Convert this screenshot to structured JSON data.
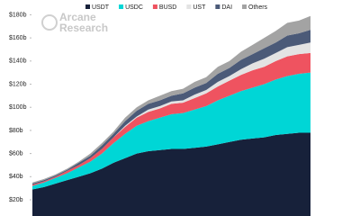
{
  "chart_data": {
    "type": "stacked-area",
    "logo": [
      "Arcane",
      "Research"
    ],
    "categories": [
      null,
      null,
      null,
      null,
      null,
      null,
      null,
      null,
      null,
      null,
      null,
      null,
      null,
      null,
      null,
      null,
      null,
      null,
      null,
      null,
      null,
      null,
      null,
      null,
      null
    ],
    "series": [
      {
        "name": "USDT",
        "color": "#17213a",
        "values": [
          29,
          31,
          34,
          37,
          40,
          43,
          47,
          52,
          56,
          60,
          62,
          63,
          64,
          64,
          65,
          66,
          68,
          70,
          72,
          73,
          74,
          76,
          77,
          78,
          78
        ]
      },
      {
        "name": "USDC",
        "color": "#00d6d6",
        "values": [
          3,
          4,
          5,
          6,
          8,
          10,
          13,
          17,
          21,
          24,
          26,
          28,
          30,
          31,
          33,
          35,
          38,
          40,
          42,
          44,
          46,
          48,
          50,
          51,
          52
        ]
      },
      {
        "name": "BUSD",
        "color": "#ef5360",
        "values": [
          1,
          1,
          1,
          2,
          2,
          3,
          4,
          5,
          6,
          7,
          8,
          8,
          9,
          9,
          10,
          11,
          12,
          13,
          14,
          15,
          15,
          16,
          17,
          17,
          17
        ]
      },
      {
        "name": "UST",
        "color": "#e3e3e3",
        "values": [
          0,
          0,
          0,
          0,
          0,
          0,
          0,
          0,
          1,
          1,
          2,
          2,
          2,
          2,
          3,
          3,
          4,
          4,
          5,
          6,
          7,
          7,
          8,
          8,
          9
        ]
      },
      {
        "name": "DAI",
        "color": "#4b5a78",
        "values": [
          1,
          1,
          1,
          1,
          2,
          2,
          3,
          3,
          4,
          5,
          5,
          5,
          5,
          6,
          6,
          6,
          7,
          7,
          8,
          8,
          9,
          9,
          10,
          10,
          11
        ]
      },
      {
        "name": "Others",
        "color": "#a3a3a3",
        "values": [
          1,
          1,
          1,
          1,
          1,
          2,
          2,
          2,
          3,
          3,
          3,
          4,
          4,
          4,
          5,
          5,
          6,
          6,
          7,
          8,
          9,
          10,
          11,
          11,
          12
        ]
      }
    ],
    "ylim": [
      6,
      185
    ],
    "yticks": [
      {
        "value": 20,
        "label": "$20b"
      },
      {
        "value": 40,
        "label": "$40b"
      },
      {
        "value": 60,
        "label": "$60b"
      },
      {
        "value": 80,
        "label": "$80b"
      },
      {
        "value": 100,
        "label": "$100b"
      },
      {
        "value": 120,
        "label": "$120b"
      },
      {
        "value": 140,
        "label": "$140b"
      },
      {
        "value": 160,
        "label": "$160b"
      },
      {
        "value": 180,
        "label": "$180b"
      }
    ],
    "grid": false,
    "legend": "top"
  }
}
